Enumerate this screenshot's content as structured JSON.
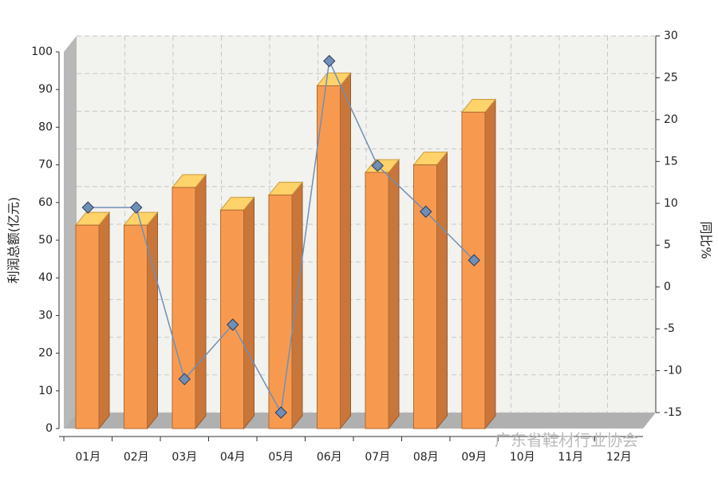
{
  "chart_data": {
    "type": "bar",
    "categories": [
      "01月",
      "02月",
      "03月",
      "04月",
      "05月",
      "06月",
      "07月",
      "08月",
      "09月",
      "10月",
      "11月",
      "12月"
    ],
    "series": [
      {
        "name": "利润总额",
        "type": "bar",
        "color": "#f79a50",
        "values": [
          54,
          54,
          64,
          58,
          62,
          91,
          68,
          70,
          84,
          null,
          null,
          null
        ]
      },
      {
        "name": "同比",
        "type": "line",
        "axis": "y2",
        "color": "#6f8fb8",
        "values": [
          9.5,
          9.5,
          -11,
          -4.5,
          -15,
          27,
          14.5,
          9,
          3.2,
          null,
          null,
          null
        ]
      }
    ],
    "y_label": "利润总额(亿元)",
    "y2_label": "同比%",
    "ylim": [
      0,
      100
    ],
    "yticks": [
      0,
      10,
      20,
      30,
      40,
      50,
      60,
      70,
      80,
      90,
      100
    ],
    "y2lim": [
      -15,
      30
    ],
    "y2ticks": [
      -15,
      -10,
      -5,
      0,
      5,
      10,
      15,
      20,
      25,
      30
    ],
    "grid": true,
    "watermark": "广东省鞋材行业协会"
  }
}
